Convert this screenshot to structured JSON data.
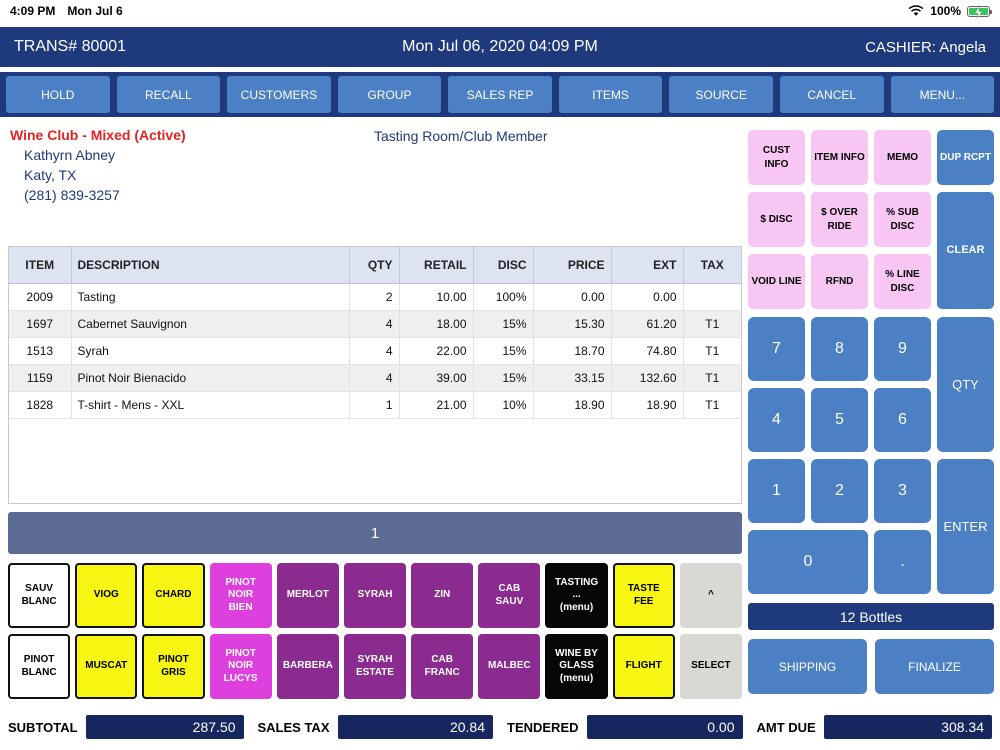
{
  "palette": {
    "navy": "#1e3a7c",
    "navy_dark": "#16265f",
    "blue": "#4b80c4",
    "pink": "#f7c6f3",
    "magenta": "#dd40dd",
    "purple": "#8c2b8f",
    "yellow": "#f7f613",
    "slate": "#5b6b94",
    "gray_btn": "#d9d8d3",
    "red": "#e02424",
    "battery_green": "#34c759"
  },
  "status_bar": {
    "time": "4:09 PM",
    "date": "Mon Jul 6",
    "battery_pct": "100%"
  },
  "header": {
    "trans": "TRANS# 80001",
    "datetime": "Mon Jul 06, 2020 04:09 PM",
    "cashier": "CASHIER: Angela"
  },
  "toolbar": [
    "HOLD",
    "RECALL",
    "CUSTOMERS",
    "GROUP",
    "SALES REP",
    "ITEMS",
    "SOURCE",
    "CANCEL",
    "MENU..."
  ],
  "customer": {
    "club_status": "Wine Club - Mixed (Active)",
    "name": "Kathyrn Abney",
    "city_state": "Katy, TX",
    "phone": "(281) 839-3257",
    "member_type": "Tasting Room/Club Member"
  },
  "items_table": {
    "headers": [
      "ITEM",
      "DESCRIPTION",
      "QTY",
      "RETAIL",
      "DISC",
      "PRICE",
      "EXT",
      "TAX"
    ],
    "rows": [
      [
        "2009",
        "Tasting",
        "2",
        "10.00",
        "100%",
        "0.00",
        "0.00",
        ""
      ],
      [
        "1697",
        "Cabernet Sauvignon",
        "4",
        "18.00",
        "15%",
        "15.30",
        "61.20",
        "T1"
      ],
      [
        "1513",
        "Syrah",
        "4",
        "22.00",
        "15%",
        "18.70",
        "74.80",
        "T1"
      ],
      [
        "1159",
        "Pinot Noir Bienacido",
        "4",
        "39.00",
        "15%",
        "33.15",
        "132.60",
        "T1"
      ],
      [
        "1828",
        "T-shirt - Mens - XXL",
        "1",
        "21.00",
        "10%",
        "18.90",
        "18.90",
        "T1"
      ]
    ]
  },
  "pagination": {
    "current_page": "1"
  },
  "product_grid": [
    [
      {
        "label": "SAUV\nBLANC",
        "style": "white",
        "name": "sauv-blanc"
      },
      {
        "label": "VIOG",
        "style": "yellow",
        "name": "viog"
      },
      {
        "label": "CHARD",
        "style": "yellow",
        "name": "chard"
      },
      {
        "label": "PINOT\nNOIR\nBIEN",
        "style": "magenta",
        "name": "pinot-noir-bien"
      },
      {
        "label": "MERLOT",
        "style": "purple",
        "name": "merlot"
      },
      {
        "label": "SYRAH",
        "style": "purple",
        "name": "syrah"
      },
      {
        "label": "ZIN",
        "style": "purple",
        "name": "zin"
      },
      {
        "label": "CAB\nSAUV",
        "style": "purple",
        "name": "cab-sauv"
      },
      {
        "label": "TASTING\n...\n(menu)",
        "style": "black",
        "name": "tasting-menu"
      },
      {
        "label": "TASTE\nFEE",
        "style": "yellow",
        "name": "taste-fee"
      },
      {
        "label": "^",
        "style": "gray",
        "name": "scroll-up"
      }
    ],
    [
      {
        "label": "PINOT\nBLANC",
        "style": "white",
        "name": "pinot-blanc"
      },
      {
        "label": "MUSCAT",
        "style": "yellow",
        "name": "muscat"
      },
      {
        "label": "PINOT\nGRIS",
        "style": "yellow",
        "name": "pinot-gris"
      },
      {
        "label": "PINOT\nNOIR\nLUCYS",
        "style": "magenta",
        "name": "pinot-noir-lucys"
      },
      {
        "label": "BARBERA",
        "style": "purple",
        "name": "barbera"
      },
      {
        "label": "SYRAH\nESTATE",
        "style": "purple",
        "name": "syrah-estate"
      },
      {
        "label": "CAB\nFRANC",
        "style": "purple",
        "name": "cab-franc"
      },
      {
        "label": "MALBEC",
        "style": "purple",
        "name": "malbec"
      },
      {
        "label": "WINE BY\nGLASS\n(menu)",
        "style": "black",
        "name": "wine-by-glass-menu"
      },
      {
        "label": "FLIGHT",
        "style": "yellow",
        "name": "flight"
      },
      {
        "label": "SELECT",
        "style": "gray",
        "name": "select"
      }
    ]
  ],
  "function_pad": [
    {
      "label": "CUST\nINFO",
      "style": "pink",
      "name": "cust-info"
    },
    {
      "label": "ITEM INFO",
      "style": "pink",
      "name": "item-info"
    },
    {
      "label": "MEMO",
      "style": "pink",
      "name": "memo"
    },
    {
      "label": "DUP RCPT",
      "style": "blue",
      "name": "dup-rcpt"
    },
    {
      "label": "$ DISC",
      "style": "pink",
      "name": "dollar-disc"
    },
    {
      "label": "$ OVER\nRIDE",
      "style": "pink",
      "name": "dollar-override"
    },
    {
      "label": "% SUB\nDISC",
      "style": "pink",
      "name": "percent-sub-disc"
    },
    {
      "label": "CLEAR",
      "style": "blue",
      "tall": true,
      "name": "clear"
    },
    {
      "label": "VOID LINE",
      "style": "pink",
      "name": "void-line"
    },
    {
      "label": "RFND",
      "style": "pink",
      "name": "rfnd"
    },
    {
      "label": "% LINE\nDISC",
      "style": "pink",
      "name": "percent-line-disc"
    }
  ],
  "numpad": [
    {
      "label": "7"
    },
    {
      "label": "8"
    },
    {
      "label": "9"
    },
    {
      "label": "QTY",
      "tall": true,
      "name": "qty"
    },
    {
      "label": "4"
    },
    {
      "label": "5"
    },
    {
      "label": "6"
    },
    {
      "label": "1"
    },
    {
      "label": "2"
    },
    {
      "label": "3"
    },
    {
      "label": "ENTER",
      "tall": true,
      "name": "enter"
    },
    {
      "label": "0",
      "wide": true
    },
    {
      "label": ".",
      "name": "decimal"
    }
  ],
  "bottles_bar": "12 Bottles",
  "actions": {
    "shipping": "SHIPPING",
    "finalize": "FINALIZE"
  },
  "totals": [
    {
      "label": "SUBTOTAL",
      "value": "287.50"
    },
    {
      "label": "SALES TAX",
      "value": "20.84"
    },
    {
      "label": "TENDERED",
      "value": "0.00"
    },
    {
      "label": "AMT DUE",
      "value": "308.34"
    }
  ]
}
